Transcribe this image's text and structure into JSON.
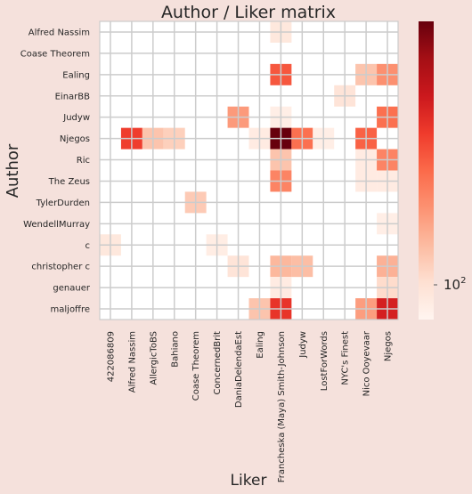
{
  "chart_data": {
    "type": "heatmap",
    "title": "Author / Liker matrix",
    "xlabel": "Liker",
    "ylabel": "Author",
    "x_categories": [
      "422086809",
      "Alfred Nassim",
      "AllergicToBS",
      "Bahiano",
      "Coase Theorem",
      "ConcernedBrit",
      "DaniaDelendaEst",
      "Ealing",
      "Francheska (Maya) Smith-Johnson",
      "Judyw",
      "LostForWords",
      "NYC's Finest",
      "Nico Ooyevaar",
      "Njegos"
    ],
    "y_categories": [
      "Alfred Nassim",
      "Coase Theorem",
      "Ealing",
      "EinarBB",
      "Judyw",
      "Njegos",
      "Ric",
      "The Zeus",
      "TylerDurden",
      "WendellMurray",
      "c",
      "christopher c",
      "genauer",
      "maljoffre"
    ],
    "colorbar": {
      "scale": "log",
      "tick_labels": [
        "10^2"
      ],
      "tick_values": [
        100
      ],
      "colormap": "Reds"
    },
    "value_note": "relative colour intensity 0-1 (log scale)",
    "cells": [
      {
        "row": 0,
        "col": 8,
        "v": 0.08
      },
      {
        "row": 2,
        "col": 8,
        "v": 0.55
      },
      {
        "row": 2,
        "col": 12,
        "v": 0.22
      },
      {
        "row": 2,
        "col": 13,
        "v": 0.38
      },
      {
        "row": 3,
        "col": 11,
        "v": 0.1
      },
      {
        "row": 4,
        "col": 6,
        "v": 0.35
      },
      {
        "row": 4,
        "col": 8,
        "v": 0.04
      },
      {
        "row": 4,
        "col": 13,
        "v": 0.48
      },
      {
        "row": 5,
        "col": 1,
        "v": 0.62
      },
      {
        "row": 5,
        "col": 2,
        "v": 0.22
      },
      {
        "row": 5,
        "col": 3,
        "v": 0.18
      },
      {
        "row": 5,
        "col": 7,
        "v": 0.06
      },
      {
        "row": 5,
        "col": 8,
        "v": 1.0
      },
      {
        "row": 5,
        "col": 9,
        "v": 0.48
      },
      {
        "row": 5,
        "col": 10,
        "v": 0.04
      },
      {
        "row": 5,
        "col": 12,
        "v": 0.52
      },
      {
        "row": 6,
        "col": 8,
        "v": 0.22
      },
      {
        "row": 6,
        "col": 12,
        "v": 0.06
      },
      {
        "row": 6,
        "col": 13,
        "v": 0.42
      },
      {
        "row": 7,
        "col": 8,
        "v": 0.42
      },
      {
        "row": 7,
        "col": 12,
        "v": 0.06
      },
      {
        "row": 7,
        "col": 13,
        "v": 0.06
      },
      {
        "row": 8,
        "col": 4,
        "v": 0.2
      },
      {
        "row": 9,
        "col": 13,
        "v": 0.04
      },
      {
        "row": 10,
        "col": 0,
        "v": 0.08
      },
      {
        "row": 10,
        "col": 5,
        "v": 0.05
      },
      {
        "row": 11,
        "col": 6,
        "v": 0.1
      },
      {
        "row": 11,
        "col": 8,
        "v": 0.26
      },
      {
        "row": 11,
        "col": 9,
        "v": 0.24
      },
      {
        "row": 11,
        "col": 13,
        "v": 0.28
      },
      {
        "row": 12,
        "col": 8,
        "v": 0.06
      },
      {
        "row": 12,
        "col": 13,
        "v": 0.14
      },
      {
        "row": 13,
        "col": 7,
        "v": 0.22
      },
      {
        "row": 13,
        "col": 8,
        "v": 0.65
      },
      {
        "row": 13,
        "col": 12,
        "v": 0.34
      },
      {
        "row": 13,
        "col": 13,
        "v": 0.72
      }
    ]
  }
}
